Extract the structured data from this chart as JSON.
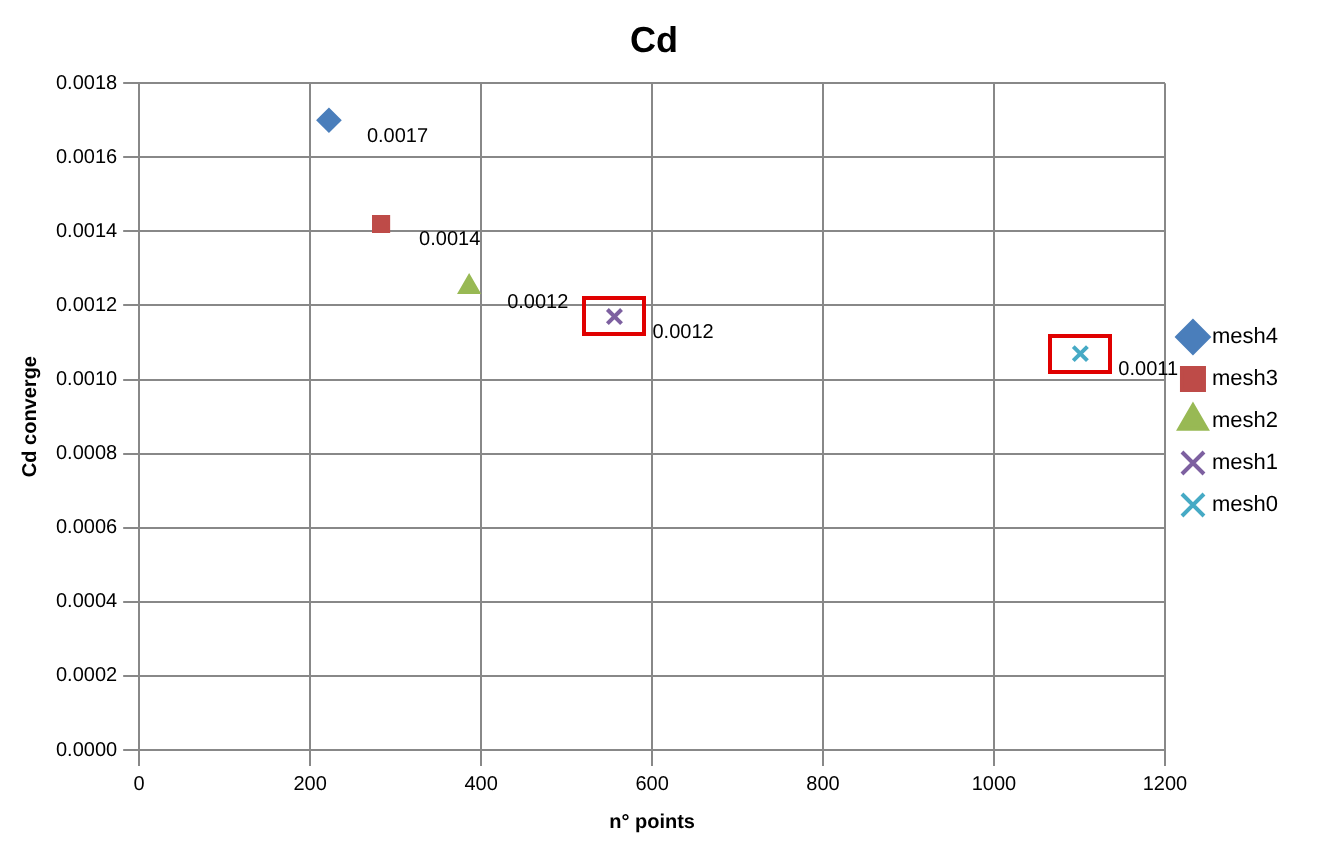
{
  "chart_data": {
    "type": "scatter",
    "title": "Cd",
    "xlabel": "n° points",
    "ylabel": "Cd converge",
    "xlim": [
      0,
      1200
    ],
    "xticks": [
      0,
      200,
      400,
      600,
      800,
      1000,
      1200
    ],
    "ylim": [
      0,
      0.0018
    ],
    "yticks": [
      {
        "value": 0,
        "label": "0.0000"
      },
      {
        "value": 0.0002,
        "label": "0.0002"
      },
      {
        "value": 0.0004,
        "label": "0.0004"
      },
      {
        "value": 0.0006,
        "label": "0.0006"
      },
      {
        "value": 0.0008,
        "label": "0.0008"
      },
      {
        "value": 0.001,
        "label": "0.0010"
      },
      {
        "value": 0.0012,
        "label": "0.0012"
      },
      {
        "value": 0.0014,
        "label": "0.0014"
      },
      {
        "value": 0.0016,
        "label": "0.0016"
      },
      {
        "value": 0.0018,
        "label": "0.0018"
      }
    ],
    "grid": true,
    "legend": "right",
    "series": [
      {
        "name": "mesh4",
        "color": "#4a7ebb",
        "marker": "diamond",
        "x": [
          222
        ],
        "values": [
          0.0017
        ],
        "value_labels": [
          "0.0017"
        ]
      },
      {
        "name": "mesh3",
        "color": "#be4b48",
        "marker": "square",
        "x": [
          283
        ],
        "values": [
          0.00142
        ],
        "value_labels": [
          "0.0014"
        ]
      },
      {
        "name": "mesh2",
        "color": "#98b954",
        "marker": "triangle",
        "x": [
          386
        ],
        "values": [
          0.00125
        ],
        "value_labels": [
          "0.0012"
        ]
      },
      {
        "name": "mesh1",
        "color": "#7d60a0",
        "marker": "cross",
        "x": [
          556
        ],
        "values": [
          0.00117
        ],
        "value_labels": [
          "0.0012"
        ]
      },
      {
        "name": "mesh0",
        "color": "#46aac5",
        "marker": "cross",
        "x": [
          1101
        ],
        "values": [
          0.00107
        ],
        "value_labels": [
          "0.0011"
        ]
      }
    ]
  }
}
